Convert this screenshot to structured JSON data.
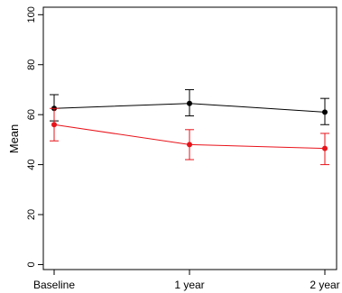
{
  "chart_data": {
    "type": "line",
    "title": "",
    "xlabel": "",
    "ylabel": "Mean",
    "categories": [
      "Baseline",
      "1 year",
      "2 year"
    ],
    "ylim": [
      -2,
      103
    ],
    "yticks": [
      0,
      20,
      40,
      60,
      80,
      100
    ],
    "grid": false,
    "legend": "none",
    "series": [
      {
        "color": "#000000",
        "values": [
          62.5,
          64.5,
          61
        ],
        "error_low": [
          57.5,
          59.5,
          56
        ],
        "error_high": [
          68,
          70,
          66.5
        ]
      },
      {
        "color": "#e8131a",
        "values": [
          56,
          48,
          46.5
        ],
        "error_low": [
          49.5,
          42,
          40
        ],
        "error_high": [
          62.5,
          54,
          52.5
        ]
      }
    ]
  }
}
